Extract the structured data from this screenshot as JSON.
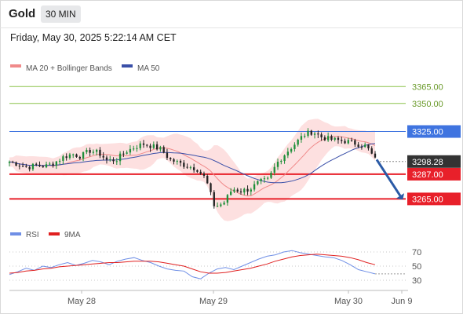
{
  "header": {
    "symbol": "Gold",
    "timeframe": "30 MIN",
    "datetime": "Friday, May 30, 2025 5:22:14 AM CET"
  },
  "legend": {
    "ma20": "MA 20 + Bollinger Bands",
    "ma50": "MA 50",
    "rsi": "RSI",
    "rsi_ma": "9MA"
  },
  "colors": {
    "resistance_green": "#8bc34a",
    "resistance_blue": "#3f74e0",
    "support_red": "#e8202a",
    "current_price": "#333333",
    "bollinger_fill": "#fde0e0",
    "ma20": "#f08a8a",
    "ma50": "#3a4fa8",
    "candle_up": "#1f8f3a",
    "candle_down": "#222222",
    "rsi": "#6f8fe6",
    "rsi_ma": "#e02020",
    "arrow": "#2a5aa6"
  },
  "chart_data": [
    {
      "type": "candlestick",
      "ylim": [
        3245,
        3375
      ],
      "x_ticks": [
        "May 28",
        "May 29",
        "May 30",
        "Jun 9"
      ],
      "current_price": "3298.28",
      "levels": [
        {
          "value": 3365.0,
          "label": "3365.00",
          "kind": "resistance",
          "color": "#8bc34a"
        },
        {
          "value": 3350.0,
          "label": "3350.00",
          "kind": "resistance",
          "color": "#8bc34a"
        },
        {
          "value": 3325.0,
          "label": "3325.00",
          "kind": "pivot",
          "color": "#3f74e0"
        },
        {
          "value": 3287.0,
          "label": "3287.00",
          "kind": "support",
          "color": "#e8202a"
        },
        {
          "value": 3265.0,
          "label": "3265.00",
          "kind": "support",
          "color": "#e8202a"
        }
      ],
      "price_path": [
        {
          "x": 0,
          "y": 3298
        },
        {
          "x": 4,
          "y": 3296
        },
        {
          "x": 8,
          "y": 3293
        },
        {
          "x": 12,
          "y": 3295
        },
        {
          "x": 16,
          "y": 3294
        },
        {
          "x": 20,
          "y": 3297
        },
        {
          "x": 24,
          "y": 3302
        },
        {
          "x": 28,
          "y": 3305
        },
        {
          "x": 32,
          "y": 3303
        },
        {
          "x": 36,
          "y": 3308
        },
        {
          "x": 40,
          "y": 3306
        },
        {
          "x": 44,
          "y": 3299
        },
        {
          "x": 48,
          "y": 3300
        },
        {
          "x": 52,
          "y": 3307
        },
        {
          "x": 56,
          "y": 3311
        },
        {
          "x": 60,
          "y": 3314
        },
        {
          "x": 64,
          "y": 3312
        },
        {
          "x": 68,
          "y": 3309
        },
        {
          "x": 72,
          "y": 3300
        },
        {
          "x": 76,
          "y": 3297
        },
        {
          "x": 80,
          "y": 3294
        },
        {
          "x": 84,
          "y": 3292
        },
        {
          "x": 88,
          "y": 3283
        },
        {
          "x": 92,
          "y": 3258
        },
        {
          "x": 96,
          "y": 3261
        },
        {
          "x": 100,
          "y": 3274
        },
        {
          "x": 104,
          "y": 3272
        },
        {
          "x": 108,
          "y": 3274
        },
        {
          "x": 112,
          "y": 3280
        },
        {
          "x": 116,
          "y": 3282
        },
        {
          "x": 120,
          "y": 3297
        },
        {
          "x": 124,
          "y": 3306
        },
        {
          "x": 128,
          "y": 3314
        },
        {
          "x": 132,
          "y": 3322
        },
        {
          "x": 136,
          "y": 3325
        },
        {
          "x": 140,
          "y": 3320
        },
        {
          "x": 144,
          "y": 3318
        },
        {
          "x": 148,
          "y": 3317
        },
        {
          "x": 152,
          "y": 3316
        },
        {
          "x": 156,
          "y": 3314
        },
        {
          "x": 160,
          "y": 3312
        },
        {
          "x": 164,
          "y": 3300
        }
      ],
      "forecast_arrow": {
        "from": 3300,
        "to": 3265
      }
    },
    {
      "type": "line",
      "name": "RSI",
      "ylim": [
        20,
        80
      ],
      "y_ticks": [
        70,
        50,
        30
      ],
      "series": [
        {
          "name": "RSI",
          "values": [
            38,
            42,
            47,
            44,
            50,
            48,
            52,
            55,
            51,
            54,
            58,
            56,
            52,
            57,
            60,
            62,
            58,
            55,
            50,
            46,
            44,
            43,
            35,
            32,
            40,
            46,
            48,
            45,
            50,
            55,
            60,
            64,
            66,
            70,
            72,
            69,
            67,
            65,
            63,
            62,
            58,
            52,
            45,
            42,
            39
          ]
        },
        {
          "name": "9MA",
          "values": [
            40,
            41,
            43,
            44,
            46,
            47,
            49,
            50,
            51,
            52,
            53,
            54,
            55,
            55,
            56,
            57,
            57,
            57,
            56,
            54,
            52,
            50,
            46,
            42,
            40,
            40,
            41,
            43,
            45,
            47,
            50,
            53,
            57,
            60,
            63,
            65,
            66,
            67,
            66,
            65,
            64,
            62,
            59,
            55,
            52
          ]
        }
      ]
    }
  ]
}
